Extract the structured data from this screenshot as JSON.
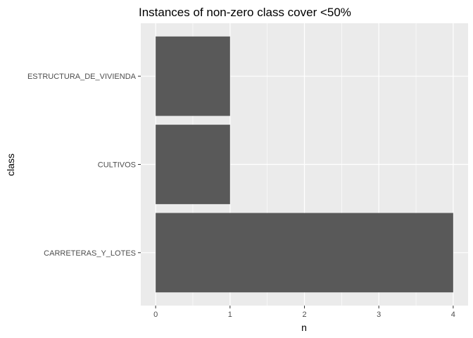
{
  "chart_data": {
    "type": "bar",
    "orientation": "horizontal",
    "title": "Instances of non-zero class cover <50%",
    "xlabel": "n",
    "ylabel": "class",
    "categories": [
      "CARRETERAS_Y_LOTES",
      "CULTIVOS",
      "ESTRUCTURA_DE_VIVIENDA"
    ],
    "values": [
      4,
      1,
      1
    ],
    "xlim": [
      -0.2,
      4.2
    ],
    "xticks": [
      0,
      1,
      2,
      3,
      4
    ],
    "grid": true,
    "legend": "none",
    "colors": {
      "bar": "#595959",
      "panel": "#ebebeb",
      "grid_major": "#ffffff",
      "tick_text": "#4d4d4d",
      "tick_mark": "#333333"
    }
  }
}
